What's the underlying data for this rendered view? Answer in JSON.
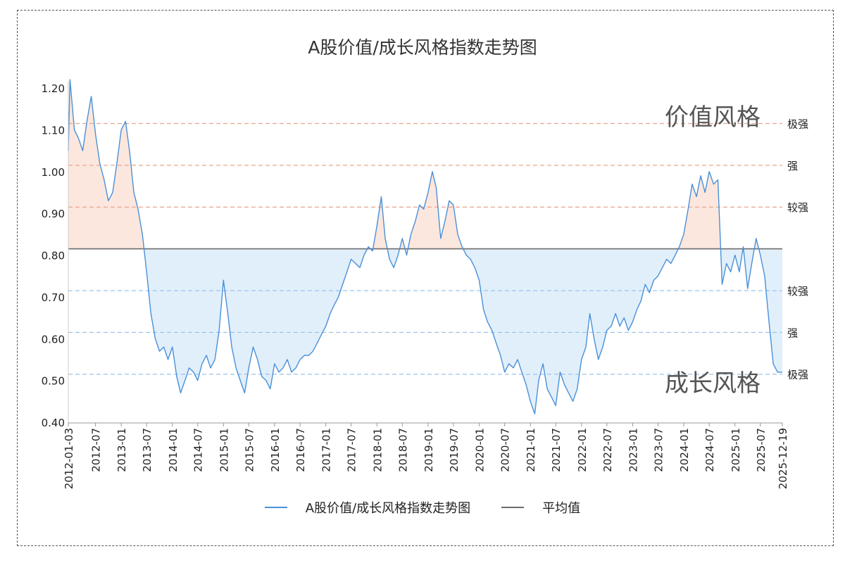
{
  "chart_data": {
    "type": "line",
    "title": "A股价值/成长风格指数走势图",
    "ylim": [
      0.4,
      1.22
    ],
    "yticks": [
      "0.40",
      "0.50",
      "0.60",
      "0.70",
      "0.80",
      "0.90",
      "1.00",
      "1.10",
      "1.20"
    ],
    "xticks": [
      "2012-01-03",
      "2012-07",
      "2013-01",
      "2013-07",
      "2014-01",
      "2014-07",
      "2015-01",
      "2015-07",
      "2016-01",
      "2016-07",
      "2017-01",
      "2017-07",
      "2018-01",
      "2018-07",
      "2019-01",
      "2019-07",
      "2020-01",
      "2020-07",
      "2021-01",
      "2021-07",
      "2022-01",
      "2022-07",
      "2023-01",
      "2023-07",
      "2024-01",
      "2024-07",
      "2025-01",
      "2025-07",
      "2025-12-19"
    ],
    "mean": 0.815,
    "thresholds": [
      {
        "value": 1.115,
        "label": "极强",
        "side": "value"
      },
      {
        "value": 1.015,
        "label": "强",
        "side": "value"
      },
      {
        "value": 0.915,
        "label": "较强",
        "side": "value"
      },
      {
        "value": 0.715,
        "label": "较强",
        "side": "growth"
      },
      {
        "value": 0.615,
        "label": "强",
        "side": "growth"
      },
      {
        "value": 0.515,
        "label": "极强",
        "side": "growth"
      }
    ],
    "annotations": {
      "value_style": "价值风格",
      "growth_style": "成长风格"
    },
    "grid": false,
    "legend_position": "bottom",
    "series": [
      {
        "name": "A股价值/成长风格指数走势图",
        "color": "#4a90d9",
        "points": [
          [
            "2012-01-03",
            1.05
          ],
          [
            "2012-01",
            1.22
          ],
          [
            "2012-02",
            1.1
          ],
          [
            "2012-03",
            1.08
          ],
          [
            "2012-04",
            1.05
          ],
          [
            "2012-05",
            1.12
          ],
          [
            "2012-06",
            1.18
          ],
          [
            "2012-07",
            1.09
          ],
          [
            "2012-08",
            1.02
          ],
          [
            "2012-09",
            0.98
          ],
          [
            "2012-10",
            0.93
          ],
          [
            "2012-11",
            0.95
          ],
          [
            "2012-12",
            1.02
          ],
          [
            "2013-01",
            1.1
          ],
          [
            "2013-02",
            1.12
          ],
          [
            "2013-03",
            1.05
          ],
          [
            "2013-04",
            0.95
          ],
          [
            "2013-05",
            0.91
          ],
          [
            "2013-06",
            0.85
          ],
          [
            "2013-07",
            0.76
          ],
          [
            "2013-08",
            0.66
          ],
          [
            "2013-09",
            0.6
          ],
          [
            "2013-10",
            0.57
          ],
          [
            "2013-11",
            0.58
          ],
          [
            "2013-12",
            0.55
          ],
          [
            "2014-01",
            0.58
          ],
          [
            "2014-02",
            0.51
          ],
          [
            "2014-03",
            0.47
          ],
          [
            "2014-04",
            0.5
          ],
          [
            "2014-05",
            0.53
          ],
          [
            "2014-06",
            0.52
          ],
          [
            "2014-07",
            0.5
          ],
          [
            "2014-08",
            0.54
          ],
          [
            "2014-09",
            0.56
          ],
          [
            "2014-10",
            0.53
          ],
          [
            "2014-11",
            0.55
          ],
          [
            "2014-12",
            0.62
          ],
          [
            "2015-01",
            0.74
          ],
          [
            "2015-02",
            0.66
          ],
          [
            "2015-03",
            0.58
          ],
          [
            "2015-04",
            0.53
          ],
          [
            "2015-05",
            0.5
          ],
          [
            "2015-06",
            0.47
          ],
          [
            "2015-07",
            0.53
          ],
          [
            "2015-08",
            0.58
          ],
          [
            "2015-09",
            0.55
          ],
          [
            "2015-10",
            0.51
          ],
          [
            "2015-11",
            0.5
          ],
          [
            "2015-12",
            0.48
          ],
          [
            "2016-01",
            0.54
          ],
          [
            "2016-02",
            0.52
          ],
          [
            "2016-03",
            0.53
          ],
          [
            "2016-04",
            0.55
          ],
          [
            "2016-05",
            0.52
          ],
          [
            "2016-06",
            0.53
          ],
          [
            "2016-07",
            0.55
          ],
          [
            "2016-08",
            0.56
          ],
          [
            "2016-09",
            0.56
          ],
          [
            "2016-10",
            0.57
          ],
          [
            "2016-11",
            0.59
          ],
          [
            "2016-12",
            0.61
          ],
          [
            "2017-01",
            0.63
          ],
          [
            "2017-02",
            0.66
          ],
          [
            "2017-03",
            0.68
          ],
          [
            "2017-04",
            0.7
          ],
          [
            "2017-05",
            0.73
          ],
          [
            "2017-06",
            0.76
          ],
          [
            "2017-07",
            0.79
          ],
          [
            "2017-08",
            0.78
          ],
          [
            "2017-09",
            0.77
          ],
          [
            "2017-10",
            0.8
          ],
          [
            "2017-11",
            0.82
          ],
          [
            "2017-12",
            0.81
          ],
          [
            "2018-01",
            0.87
          ],
          [
            "2018-02",
            0.94
          ],
          [
            "2018-03",
            0.84
          ],
          [
            "2018-04",
            0.79
          ],
          [
            "2018-05",
            0.77
          ],
          [
            "2018-06",
            0.8
          ],
          [
            "2018-07",
            0.84
          ],
          [
            "2018-08",
            0.8
          ],
          [
            "2018-09",
            0.85
          ],
          [
            "2018-10",
            0.88
          ],
          [
            "2018-11",
            0.92
          ],
          [
            "2018-12",
            0.91
          ],
          [
            "2019-01",
            0.95
          ],
          [
            "2019-02",
            1.0
          ],
          [
            "2019-03",
            0.96
          ],
          [
            "2019-04",
            0.84
          ],
          [
            "2019-05",
            0.88
          ],
          [
            "2019-06",
            0.93
          ],
          [
            "2019-07",
            0.92
          ],
          [
            "2019-08",
            0.85
          ],
          [
            "2019-09",
            0.82
          ],
          [
            "2019-10",
            0.8
          ],
          [
            "2019-11",
            0.79
          ],
          [
            "2019-12",
            0.77
          ],
          [
            "2020-01",
            0.74
          ],
          [
            "2020-02",
            0.67
          ],
          [
            "2020-03",
            0.64
          ],
          [
            "2020-04",
            0.62
          ],
          [
            "2020-05",
            0.59
          ],
          [
            "2020-06",
            0.56
          ],
          [
            "2020-07",
            0.52
          ],
          [
            "2020-08",
            0.54
          ],
          [
            "2020-09",
            0.53
          ],
          [
            "2020-10",
            0.55
          ],
          [
            "2020-11",
            0.52
          ],
          [
            "2020-12",
            0.49
          ],
          [
            "2021-01",
            0.45
          ],
          [
            "2021-02",
            0.42
          ],
          [
            "2021-03",
            0.5
          ],
          [
            "2021-04",
            0.54
          ],
          [
            "2021-05",
            0.48
          ],
          [
            "2021-06",
            0.46
          ],
          [
            "2021-07",
            0.44
          ],
          [
            "2021-08",
            0.52
          ],
          [
            "2021-09",
            0.49
          ],
          [
            "2021-10",
            0.47
          ],
          [
            "2021-11",
            0.45
          ],
          [
            "2021-12",
            0.48
          ],
          [
            "2022-01",
            0.55
          ],
          [
            "2022-02",
            0.58
          ],
          [
            "2022-03",
            0.66
          ],
          [
            "2022-04",
            0.6
          ],
          [
            "2022-05",
            0.55
          ],
          [
            "2022-06",
            0.58
          ],
          [
            "2022-07",
            0.62
          ],
          [
            "2022-08",
            0.63
          ],
          [
            "2022-09",
            0.66
          ],
          [
            "2022-10",
            0.63
          ],
          [
            "2022-11",
            0.65
          ],
          [
            "2022-12",
            0.62
          ],
          [
            "2023-01",
            0.64
          ],
          [
            "2023-02",
            0.67
          ],
          [
            "2023-03",
            0.69
          ],
          [
            "2023-04",
            0.73
          ],
          [
            "2023-05",
            0.71
          ],
          [
            "2023-06",
            0.74
          ],
          [
            "2023-07",
            0.75
          ],
          [
            "2023-08",
            0.77
          ],
          [
            "2023-09",
            0.79
          ],
          [
            "2023-10",
            0.78
          ],
          [
            "2023-11",
            0.8
          ],
          [
            "2023-12",
            0.82
          ],
          [
            "2024-01",
            0.85
          ],
          [
            "2024-02",
            0.91
          ],
          [
            "2024-03",
            0.97
          ],
          [
            "2024-04",
            0.94
          ],
          [
            "2024-05",
            0.99
          ],
          [
            "2024-06",
            0.95
          ],
          [
            "2024-07",
            1.0
          ],
          [
            "2024-08",
            0.97
          ],
          [
            "2024-09",
            0.98
          ],
          [
            "2024-10",
            0.73
          ],
          [
            "2024-11",
            0.78
          ],
          [
            "2024-12",
            0.76
          ],
          [
            "2025-01",
            0.8
          ],
          [
            "2025-02",
            0.76
          ],
          [
            "2025-03",
            0.82
          ],
          [
            "2025-04",
            0.72
          ],
          [
            "2025-05",
            0.78
          ],
          [
            "2025-06",
            0.84
          ],
          [
            "2025-07",
            0.8
          ],
          [
            "2025-08",
            0.75
          ],
          [
            "2025-09",
            0.64
          ],
          [
            "2025-10",
            0.54
          ],
          [
            "2025-11",
            0.52
          ],
          [
            "2025-12-19",
            0.52
          ]
        ]
      }
    ]
  },
  "legend": {
    "series_label": "A股价值/成长风格指数走势图",
    "mean_label": "平均值"
  }
}
